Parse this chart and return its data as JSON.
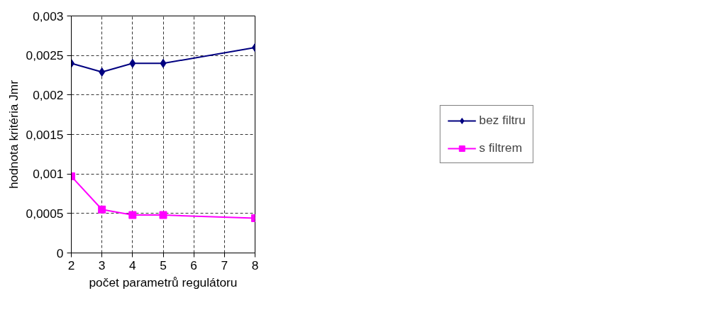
{
  "chart_data": {
    "type": "line",
    "xlabel": "počet parametrů regulátoru",
    "ylabel": "hodnota kritéria Jmr",
    "x": [
      2,
      3,
      4,
      5,
      8
    ],
    "series": [
      {
        "name": "bez filtru",
        "color": "#000080",
        "marker": "diamond",
        "values": [
          0.0024,
          0.00229,
          0.0024,
          0.0024,
          0.0026
        ]
      },
      {
        "name": "s filtrem",
        "color": "#ff00ff",
        "marker": "square",
        "values": [
          0.00097,
          0.00055,
          0.00048,
          0.00048,
          0.00044
        ]
      }
    ],
    "xlim": [
      2,
      8
    ],
    "xticks": [
      2,
      3,
      4,
      5,
      6,
      7,
      8
    ],
    "ylim": [
      0,
      0.003
    ],
    "yticks": [
      {
        "value": 0,
        "label": "0"
      },
      {
        "value": 0.0005,
        "label": "0,0005"
      },
      {
        "value": 0.001,
        "label": "0,001"
      },
      {
        "value": 0.0015,
        "label": "0,0015"
      },
      {
        "value": 0.002,
        "label": "0,002"
      },
      {
        "value": 0.0025,
        "label": "0,0025"
      },
      {
        "value": 0.003,
        "label": "0,003"
      }
    ],
    "grid": true,
    "legend": "right",
    "line_style": "solid"
  }
}
